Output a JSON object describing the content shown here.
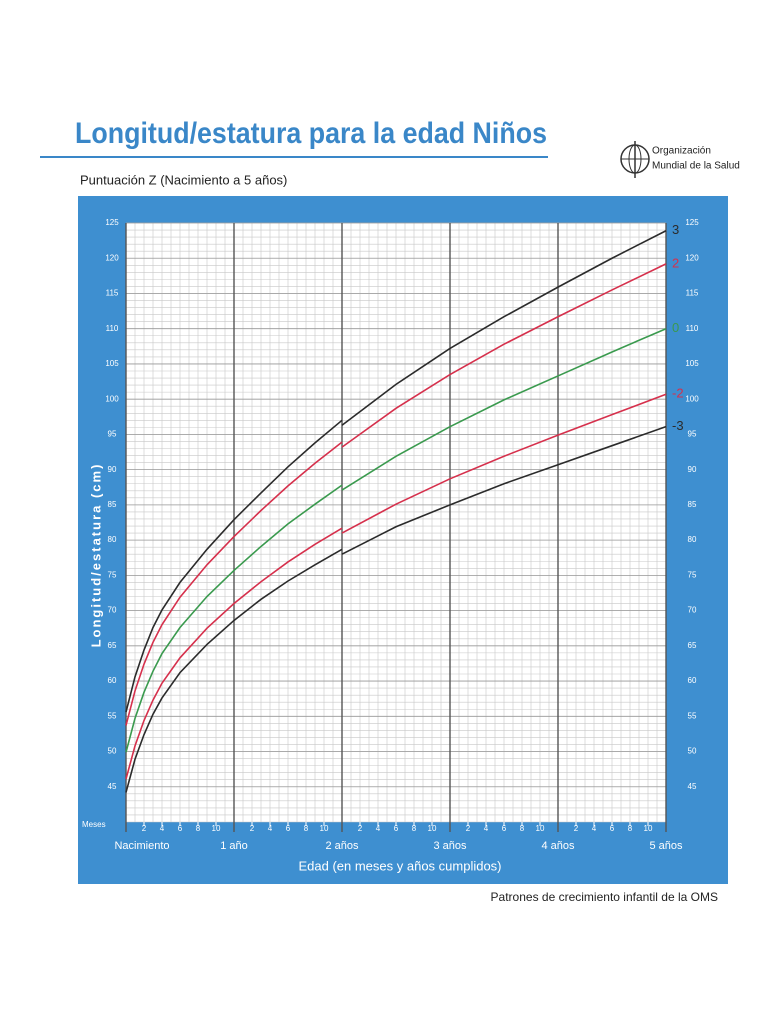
{
  "chart_data": {
    "type": "line",
    "title": "Longitud/estatura para la edad Niños",
    "subtitle": "Puntuación Z (Nacimiento a 5 años)",
    "organization": [
      "Organización",
      "Mundial de la Salud"
    ],
    "x_label": "Edad (en meses y años cumplidos)",
    "x_unit_label": "Meses",
    "y_label": "Longitud/estatura (cm)",
    "footer": "Patrones de crecimiento infantil de la OMS",
    "x": [
      0,
      1,
      2,
      3,
      4,
      6,
      9,
      12,
      15,
      18,
      21,
      24,
      24,
      24,
      30,
      36,
      42,
      48,
      54,
      60
    ],
    "series": [
      {
        "name": "3",
        "color": "#2b2b2b",
        "values": [
          55.6,
          60.6,
          64.4,
          67.6,
          70.1,
          74.0,
          78.7,
          82.9,
          86.7,
          90.4,
          93.8,
          97.0,
          null,
          96.3,
          102.1,
          107.2,
          111.7,
          115.9,
          120.0,
          123.9
        ]
      },
      {
        "name": "2",
        "color": "#d6304c",
        "values": [
          53.7,
          58.6,
          62.4,
          65.5,
          68.0,
          71.9,
          76.5,
          80.5,
          84.2,
          87.7,
          90.9,
          93.9,
          null,
          93.2,
          98.7,
          103.5,
          107.8,
          111.7,
          115.5,
          119.2
        ]
      },
      {
        "name": "0",
        "color": "#3a9a4e",
        "values": [
          49.9,
          54.7,
          58.4,
          61.4,
          63.9,
          67.6,
          72.0,
          75.7,
          79.1,
          82.3,
          85.1,
          87.8,
          null,
          87.1,
          91.9,
          96.1,
          99.9,
          103.3,
          106.7,
          110.0
        ]
      },
      {
        "name": "-2",
        "color": "#d6304c",
        "values": [
          46.1,
          50.8,
          54.4,
          57.3,
          59.7,
          63.3,
          67.5,
          71.0,
          74.1,
          76.9,
          79.4,
          81.7,
          null,
          81.0,
          85.1,
          88.7,
          91.9,
          94.9,
          97.8,
          100.7
        ]
      },
      {
        "name": "-3",
        "color": "#2b2b2b",
        "values": [
          44.2,
          48.9,
          52.4,
          55.3,
          57.6,
          61.2,
          65.2,
          68.6,
          71.6,
          74.2,
          76.5,
          78.7,
          null,
          78.0,
          81.9,
          85.0,
          88.0,
          90.7,
          93.4,
          96.1
        ]
      }
    ],
    "xlim": [
      0,
      60
    ],
    "ylim": [
      40,
      125
    ],
    "yticks": [
      45,
      50,
      55,
      60,
      65,
      70,
      75,
      80,
      85,
      90,
      95,
      100,
      105,
      110,
      115,
      120,
      125
    ],
    "xticks": [
      {
        "value": 2,
        "label": "2"
      },
      {
        "value": 4,
        "label": "4"
      },
      {
        "value": 6,
        "label": "6"
      },
      {
        "value": 8,
        "label": "8"
      },
      {
        "value": 10,
        "label": "10"
      },
      {
        "value": 14,
        "label": "2"
      },
      {
        "value": 16,
        "label": "4"
      },
      {
        "value": 18,
        "label": "6"
      },
      {
        "value": 20,
        "label": "8"
      },
      {
        "value": 22,
        "label": "10"
      },
      {
        "value": 26,
        "label": "2"
      },
      {
        "value": 28,
        "label": "4"
      },
      {
        "value": 30,
        "label": "6"
      },
      {
        "value": 32,
        "label": "8"
      },
      {
        "value": 34,
        "label": "10"
      },
      {
        "value": 38,
        "label": "2"
      },
      {
        "value": 40,
        "label": "4"
      },
      {
        "value": 42,
        "label": "6"
      },
      {
        "value": 44,
        "label": "8"
      },
      {
        "value": 46,
        "label": "10"
      },
      {
        "value": 50,
        "label": "2"
      },
      {
        "value": 52,
        "label": "4"
      },
      {
        "value": 54,
        "label": "6"
      },
      {
        "value": 56,
        "label": "8"
      },
      {
        "value": 58,
        "label": "10"
      }
    ],
    "year_ticks": [
      {
        "value": 0,
        "label": "Nacimiento"
      },
      {
        "value": 12,
        "label": "1 año"
      },
      {
        "value": 24,
        "label": "2 años"
      },
      {
        "value": 36,
        "label": "3 años"
      },
      {
        "value": 48,
        "label": "4 años"
      },
      {
        "value": 60,
        "label": "5 años"
      }
    ],
    "grid": true
  }
}
